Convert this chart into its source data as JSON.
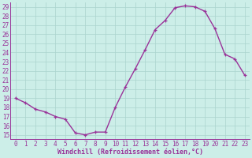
{
  "x": [
    0,
    1,
    2,
    3,
    4,
    5,
    6,
    7,
    8,
    9,
    10,
    11,
    12,
    13,
    14,
    15,
    16,
    17,
    18,
    19,
    20,
    21,
    22,
    23
  ],
  "y": [
    19.0,
    18.5,
    17.8,
    17.5,
    17.0,
    16.7,
    15.2,
    15.0,
    15.3,
    15.3,
    18.0,
    20.2,
    22.2,
    24.3,
    26.5,
    27.5,
    28.9,
    29.1,
    29.0,
    28.5,
    26.6,
    23.8,
    23.3,
    21.5
  ],
  "line_color": "#993399",
  "marker": "+",
  "markersize": 3,
  "linewidth": 1.0,
  "background_color": "#cceee8",
  "grid_color": "#aad4ce",
  "xlabel": "Windchill (Refroidissement éolien,°C)",
  "xlabel_fontsize": 6.0,
  "tick_fontsize": 5.5,
  "ylim_min": 14.5,
  "ylim_max": 29.5,
  "xlim_min": -0.5,
  "xlim_max": 23.5,
  "yticks": [
    15,
    16,
    17,
    18,
    19,
    20,
    21,
    22,
    23,
    24,
    25,
    26,
    27,
    28,
    29
  ],
  "xtick_labels": [
    "0",
    "1",
    "2",
    "3",
    "4",
    "5",
    "6",
    "7",
    "8",
    "9",
    "10",
    "11",
    "12",
    "13",
    "14",
    "15",
    "16",
    "17",
    "18",
    "19",
    "20",
    "21",
    "22",
    "23"
  ]
}
